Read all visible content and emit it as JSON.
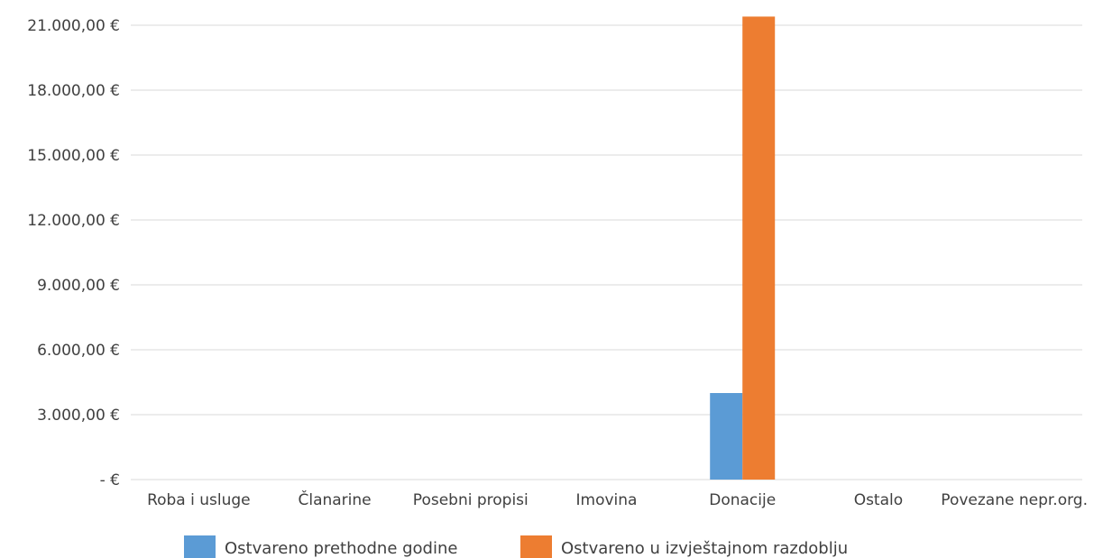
{
  "chart_data": {
    "type": "bar",
    "categories": [
      "Roba i usluge",
      "Članarine",
      "Posebni propisi",
      "Imovina",
      "Donacije",
      "Ostalo",
      "Povezane nepr.org."
    ],
    "series": [
      {
        "name": "Ostvareno prethodne godine",
        "color": "#5b9bd5",
        "values": [
          0,
          0,
          0,
          0,
          4000,
          0,
          0
        ]
      },
      {
        "name": "Ostvareno u izvještajnom razdoblju",
        "color": "#ed7d31",
        "values": [
          0,
          0,
          0,
          0,
          21400,
          0,
          0
        ]
      }
    ],
    "ylim": [
      0,
      21000
    ],
    "yticks": [
      0,
      3000,
      6000,
      9000,
      12000,
      15000,
      18000,
      21000
    ],
    "ytick_labels": [
      "-  €",
      "3.000,00 €",
      "6.000,00 €",
      "9.000,00 €",
      "12.000,00 €",
      "15.000,00 €",
      "18.000,00 €",
      "21.000,00 €"
    ],
    "grid": true,
    "legend_position": "bottom",
    "title": "",
    "xlabel": "",
    "ylabel": ""
  }
}
